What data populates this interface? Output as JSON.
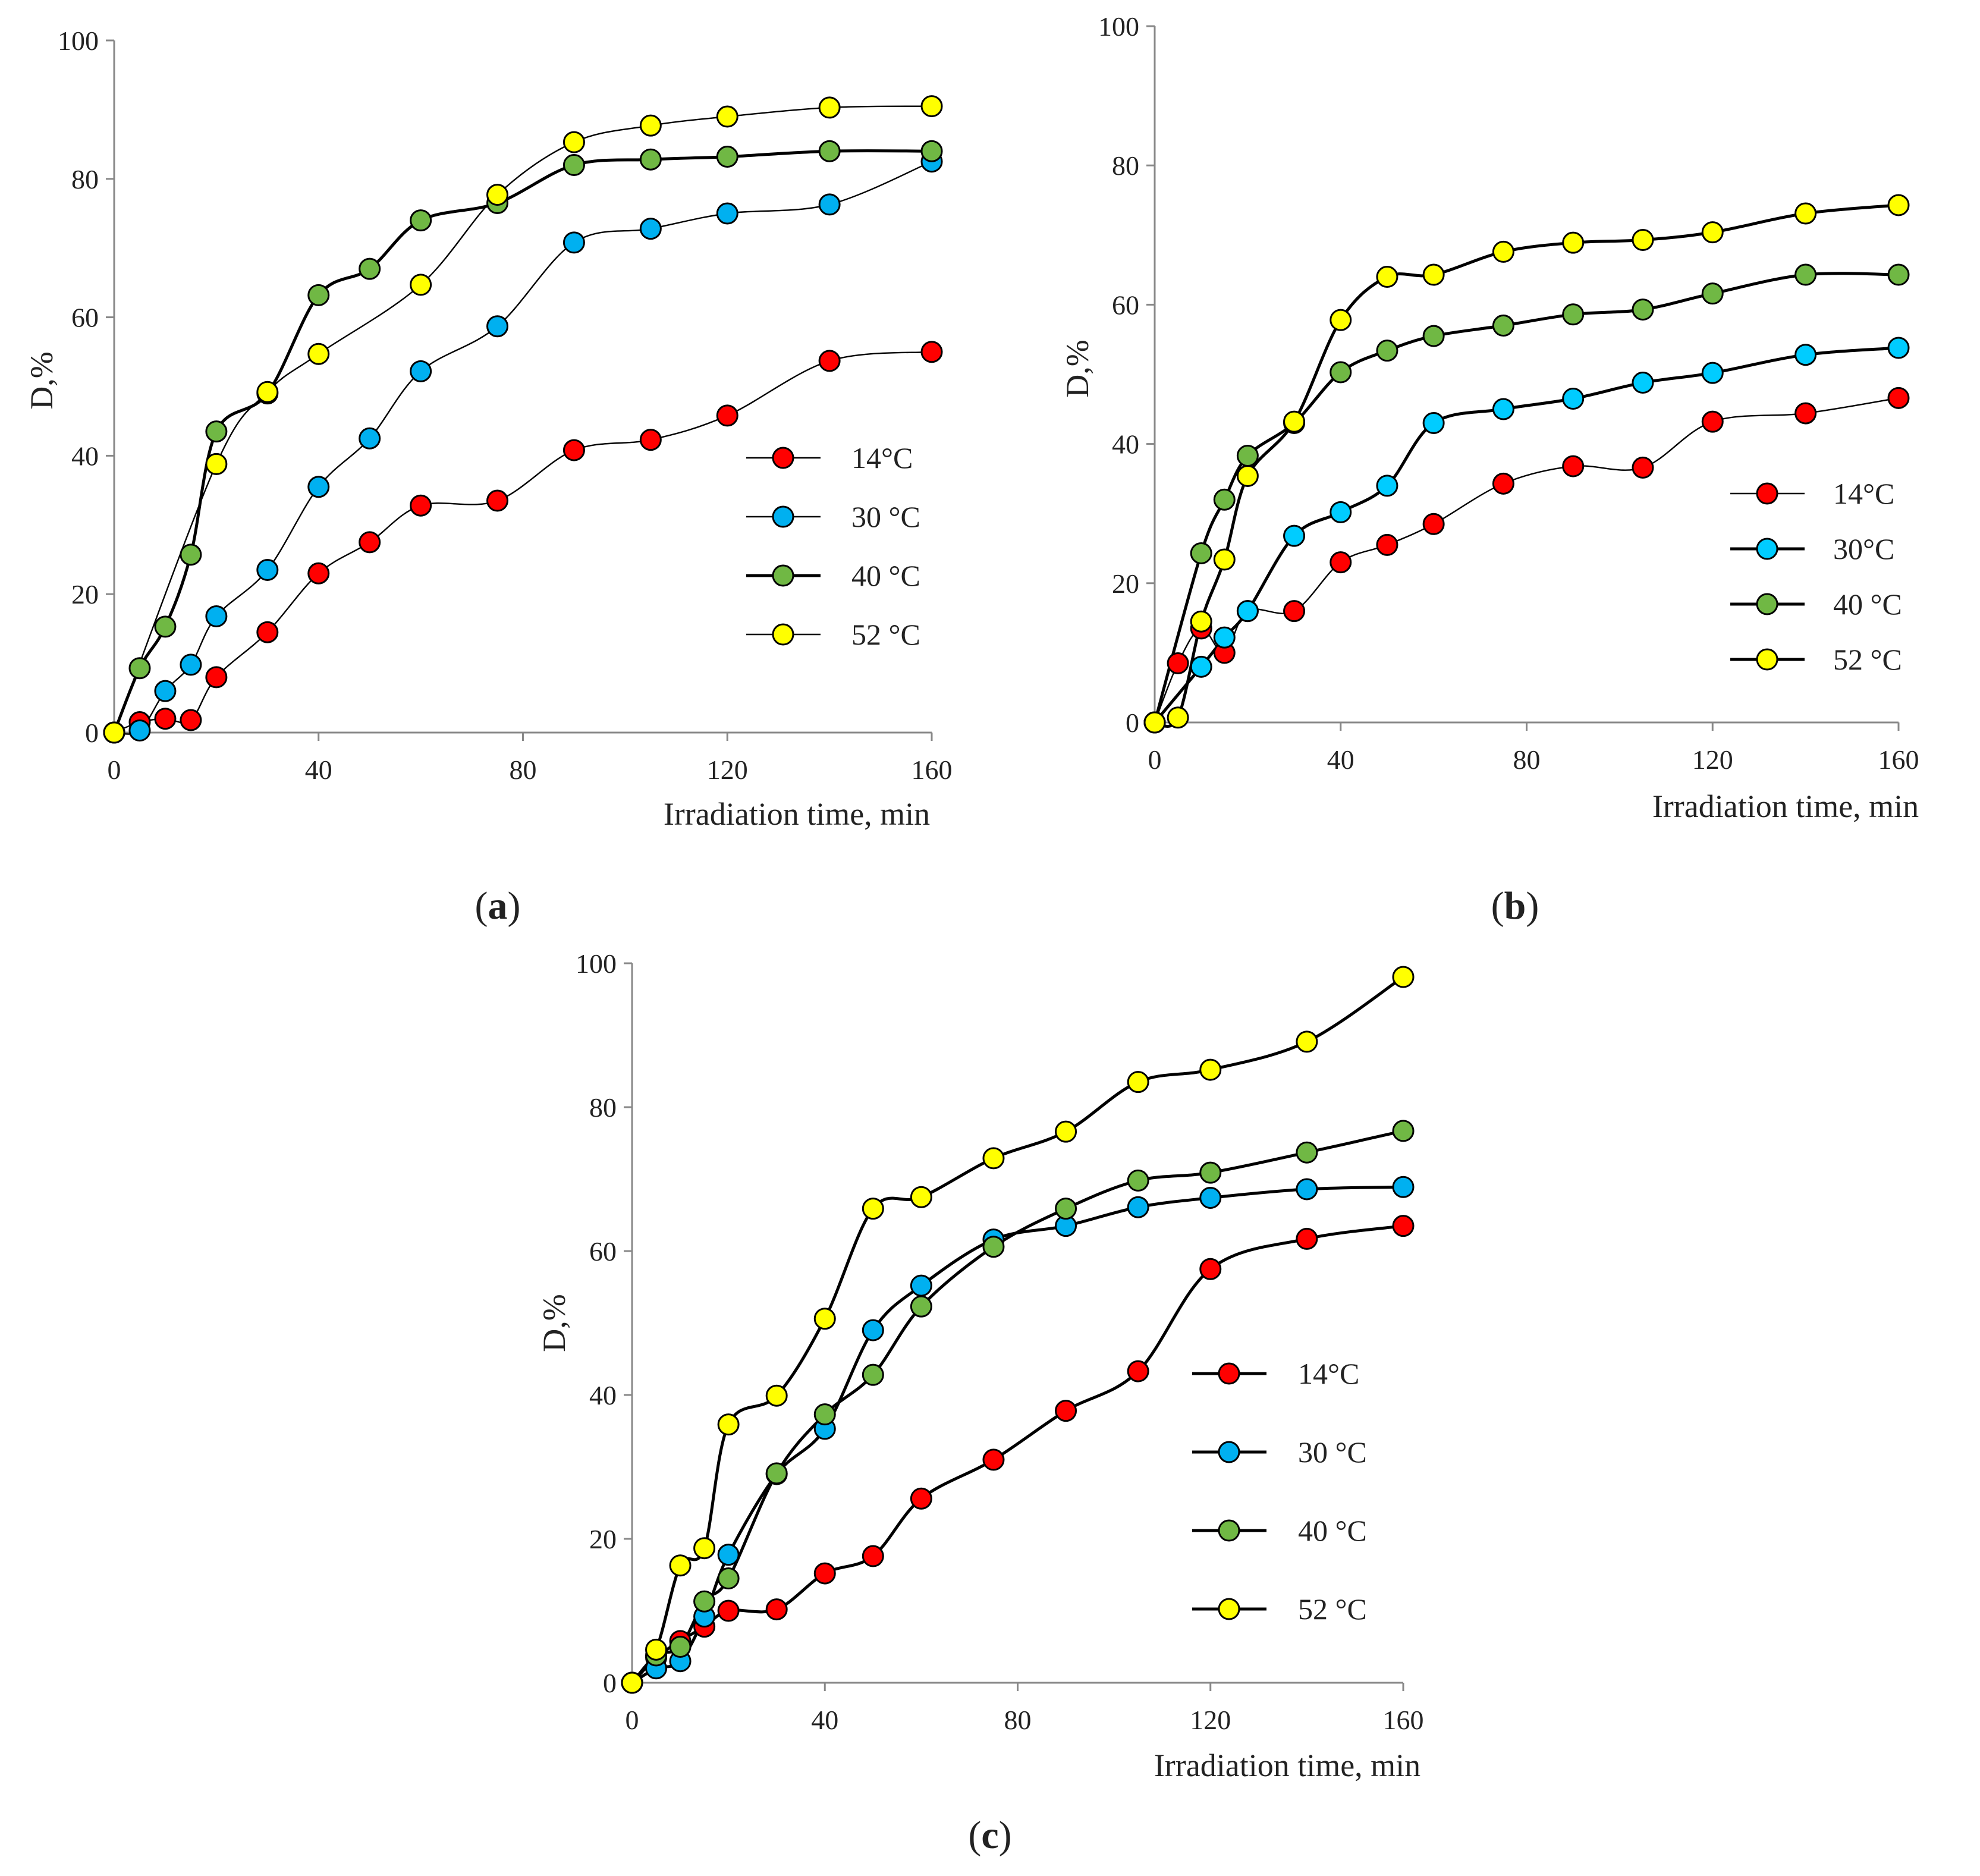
{
  "chart_data": [
    {
      "type": "line",
      "panel_label": "(a)",
      "panel_letter": "a",
      "xlabel": "Irradiation time, min",
      "ylabel": "D,%",
      "xlim": [
        0,
        160
      ],
      "ylim": [
        0,
        100
      ],
      "xticks": [
        "0",
        "40",
        "80",
        "120",
        "160"
      ],
      "yticks": [
        "0",
        "20",
        "40",
        "60",
        "80",
        "100"
      ],
      "grid": false,
      "legend": "right",
      "series": [
        {
          "name": "14°C",
          "color": "#ff0000",
          "x": [
            0,
            5,
            10,
            15,
            20,
            30,
            40,
            50,
            60,
            75,
            90,
            105,
            120,
            140,
            160
          ],
          "y": [
            0,
            1.5,
            2,
            1.8,
            8,
            14.5,
            23,
            27.5,
            32.8,
            33.5,
            40.8,
            42.3,
            45.8,
            53.7,
            55
          ]
        },
        {
          "name": "30 °C",
          "color": "#00b0f0",
          "x": [
            0,
            5,
            10,
            15,
            20,
            30,
            40,
            50,
            60,
            75,
            90,
            105,
            120,
            140,
            160
          ],
          "y": [
            0,
            0.3,
            6,
            9.8,
            16.8,
            23.5,
            35.5,
            42.5,
            52.2,
            58.7,
            70.8,
            72.8,
            75,
            76.3,
            82.5
          ]
        },
        {
          "name": "40 °C",
          "color": "#70b844",
          "x": [
            0,
            5,
            10,
            15,
            20,
            30,
            40,
            50,
            60,
            75,
            90,
            105,
            120,
            140,
            160
          ],
          "y": [
            0,
            9.3,
            15.3,
            25.7,
            43.5,
            49,
            63.2,
            67,
            74,
            76.5,
            82,
            82.8,
            83.2,
            84,
            84
          ]
        },
        {
          "name": "52 °C",
          "color": "#ffff00",
          "x": [
            0,
            20,
            30,
            40,
            60,
            75,
            90,
            105,
            120,
            140,
            160
          ],
          "y": [
            0,
            38.8,
            49.2,
            54.7,
            64.7,
            77.7,
            85.3,
            87.7,
            89,
            90.3,
            90.5
          ]
        }
      ]
    },
    {
      "type": "line",
      "panel_label": "(b)",
      "panel_letter": "b",
      "xlabel": "Irradiation time, min",
      "ylabel": "D,%",
      "xlim": [
        0,
        160
      ],
      "ylim": [
        0,
        100
      ],
      "xticks": [
        "0",
        "40",
        "80",
        "120",
        "160"
      ],
      "yticks": [
        "0",
        "20",
        "40",
        "60",
        "80",
        "100"
      ],
      "grid": false,
      "legend": "right",
      "series": [
        {
          "name": "14°C",
          "color": "#ff0000",
          "x": [
            0,
            5,
            10,
            15,
            20,
            30,
            40,
            50,
            60,
            75,
            90,
            105,
            120,
            140,
            160
          ],
          "y": [
            0,
            8.5,
            13.5,
            10,
            16,
            16,
            23,
            25.5,
            28.5,
            34.3,
            36.8,
            36.6,
            43.2,
            44.4,
            46.6
          ]
        },
        {
          "name": "30°C",
          "color": "#00ccff",
          "x": [
            0,
            10,
            15,
            20,
            30,
            40,
            50,
            60,
            75,
            90,
            105,
            120,
            140,
            160
          ],
          "y": [
            0,
            8,
            12.2,
            16,
            26.8,
            30.2,
            34,
            43,
            45,
            46.5,
            48.8,
            50.2,
            52.8,
            53.8
          ]
        },
        {
          "name": "40 °C",
          "color": "#70b844",
          "x": [
            0,
            10,
            15,
            20,
            30,
            40,
            50,
            60,
            75,
            90,
            105,
            120,
            140,
            160
          ],
          "y": [
            0,
            24.3,
            32,
            38.3,
            43,
            50.3,
            53.4,
            55.5,
            57,
            58.6,
            59.3,
            61.6,
            64.3,
            64.3
          ]
        },
        {
          "name": "52 °C",
          "color": "#ffff00",
          "x": [
            0,
            5,
            10,
            15,
            20,
            30,
            40,
            50,
            60,
            75,
            90,
            105,
            120,
            140,
            160
          ],
          "y": [
            0,
            0.7,
            14.5,
            23.4,
            35.4,
            43.2,
            57.8,
            64,
            64.3,
            67.6,
            68.9,
            69.3,
            70.4,
            73.1,
            74.3
          ]
        }
      ]
    },
    {
      "type": "line",
      "panel_label": "(c)",
      "panel_letter": "c",
      "xlabel": "Irradiation time, min",
      "ylabel": "D,%",
      "xlim": [
        0,
        160
      ],
      "ylim": [
        0,
        100
      ],
      "xticks": [
        "0",
        "40",
        "80",
        "120",
        "160"
      ],
      "yticks": [
        "0",
        "20",
        "40",
        "60",
        "80",
        "100"
      ],
      "grid": false,
      "legend": "right",
      "series": [
        {
          "name": "14°C",
          "color": "#ff0000",
          "x": [
            0,
            5,
            10,
            15,
            20,
            30,
            40,
            50,
            60,
            75,
            90,
            105,
            120,
            140,
            160
          ],
          "y": [
            0,
            3.5,
            5.8,
            7.8,
            10,
            10.2,
            15.2,
            17.6,
            25.6,
            31,
            37.8,
            43.3,
            57.5,
            61.7,
            63.5
          ]
        },
        {
          "name": "30 °C",
          "color": "#00b0f0",
          "x": [
            0,
            5,
            10,
            15,
            20,
            30,
            40,
            50,
            60,
            75,
            90,
            105,
            120,
            140,
            160
          ],
          "y": [
            0,
            2,
            3,
            9.2,
            17.8,
            29,
            35.3,
            49,
            55.2,
            61.6,
            63.5,
            66.1,
            67.4,
            68.6,
            68.9
          ]
        },
        {
          "name": "40 °C",
          "color": "#70b844",
          "x": [
            0,
            5,
            10,
            15,
            20,
            30,
            40,
            50,
            60,
            75,
            90,
            105,
            120,
            140,
            160
          ],
          "y": [
            0,
            3.8,
            5,
            11.3,
            14.5,
            29.1,
            37.3,
            42.8,
            52.3,
            60.6,
            65.9,
            69.8,
            70.9,
            73.7,
            76.7
          ]
        },
        {
          "name": "52 °C",
          "color": "#ffff00",
          "x": [
            0,
            5,
            10,
            15,
            20,
            30,
            40,
            50,
            60,
            75,
            90,
            105,
            120,
            140,
            160
          ],
          "y": [
            0,
            4.6,
            16.3,
            18.7,
            35.9,
            39.9,
            50.6,
            65.9,
            67.5,
            72.9,
            76.6,
            83.5,
            85.2,
            89.1,
            98.1
          ]
        }
      ]
    }
  ]
}
